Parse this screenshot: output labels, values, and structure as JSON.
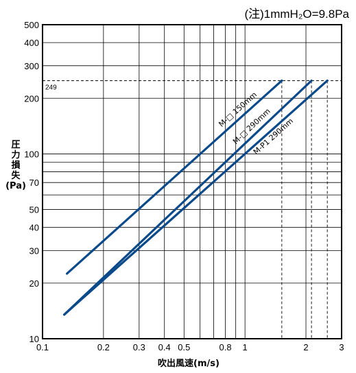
{
  "note": "(注)1mmH₂O=9.8Pa",
  "ylabel_lines": [
    "圧",
    "力",
    "損",
    "失",
    "(Pa)"
  ],
  "xlabel": "吹出風速(m/s)",
  "chart_data": {
    "type": "line",
    "x_scale": "log",
    "y_scale": "log",
    "xlim": [
      0.1,
      3
    ],
    "ylim": [
      10,
      500
    ],
    "x_ticks": [
      0.1,
      0.2,
      0.3,
      0.4,
      0.5,
      0.8,
      1,
      2,
      3
    ],
    "x_tick_labels": [
      "0.1",
      "0.2",
      "0.3",
      "0.4",
      "0.5",
      "0.8",
      "1",
      "2",
      "3"
    ],
    "y_ticks": [
      10,
      20,
      30,
      40,
      50,
      70,
      100,
      200,
      300,
      400,
      500
    ],
    "y_tick_labels": [
      "10",
      "20",
      "30",
      "40",
      "50",
      "70",
      "100",
      "200",
      "300",
      "400",
      "500"
    ],
    "x_minor_grid": [
      0.6,
      0.7,
      0.9
    ],
    "y_minor_grid": [
      60,
      80,
      90
    ],
    "reference_line": {
      "y": 249,
      "label": "249"
    },
    "reference_verticals": [
      1.52,
      2.13,
      2.55
    ],
    "grid": true,
    "line_color": "#0b4a8a",
    "series": [
      {
        "name": "M-□ 150mm",
        "x": [
          0.132,
          1.52
        ],
        "y": [
          22.5,
          249
        ]
      },
      {
        "name": "M-□ 290mm",
        "x": [
          0.128,
          2.13
        ],
        "y": [
          13.5,
          249
        ]
      },
      {
        "name": "M-P1 290mm",
        "x": [
          0.128,
          2.55
        ],
        "y": [
          13.5,
          249
        ]
      }
    ]
  }
}
